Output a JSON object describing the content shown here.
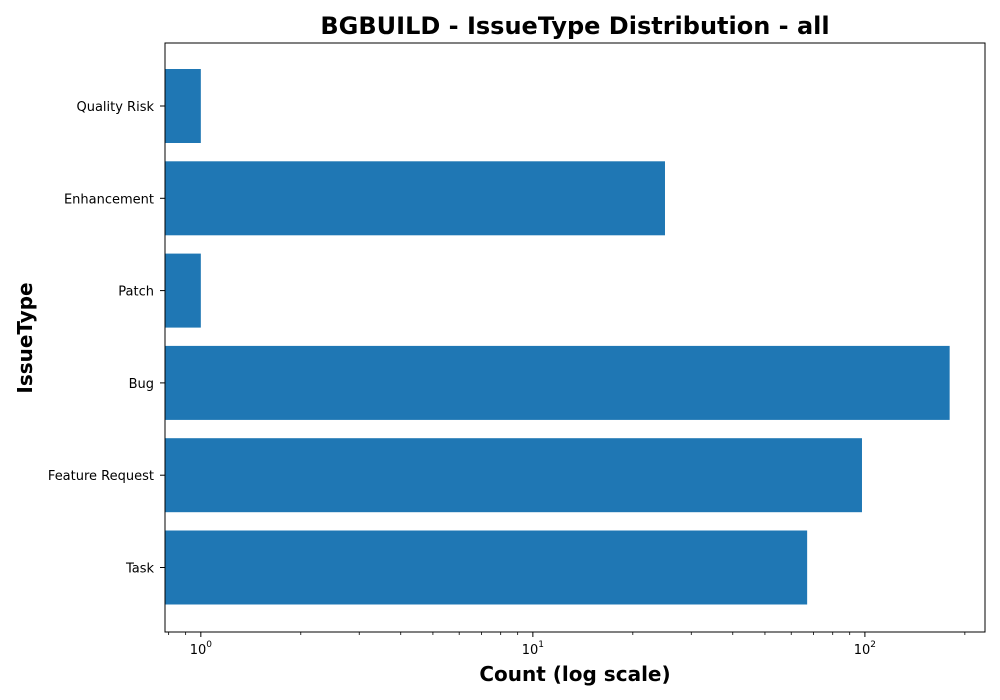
{
  "chart_data": {
    "type": "bar",
    "orientation": "horizontal",
    "title": "BGBUILD - IssueType Distribution - all",
    "xlabel": "Count (log scale)",
    "ylabel": "IssueType",
    "x_scale": "log",
    "xlim": [
      0.78,
      230
    ],
    "categories": [
      "Quality Risk",
      "Enhancement",
      "Patch",
      "Bug",
      "Feature Request",
      "Task"
    ],
    "values": [
      1,
      25,
      1,
      180,
      98,
      67
    ],
    "x_ticks": [
      {
        "base": "10",
        "exp": "0",
        "value": 1
      },
      {
        "base": "10",
        "exp": "1",
        "value": 10
      },
      {
        "base": "10",
        "exp": "2",
        "value": 100
      }
    ],
    "bar_color": "#1f77b4",
    "grid": false,
    "legend": "none"
  }
}
